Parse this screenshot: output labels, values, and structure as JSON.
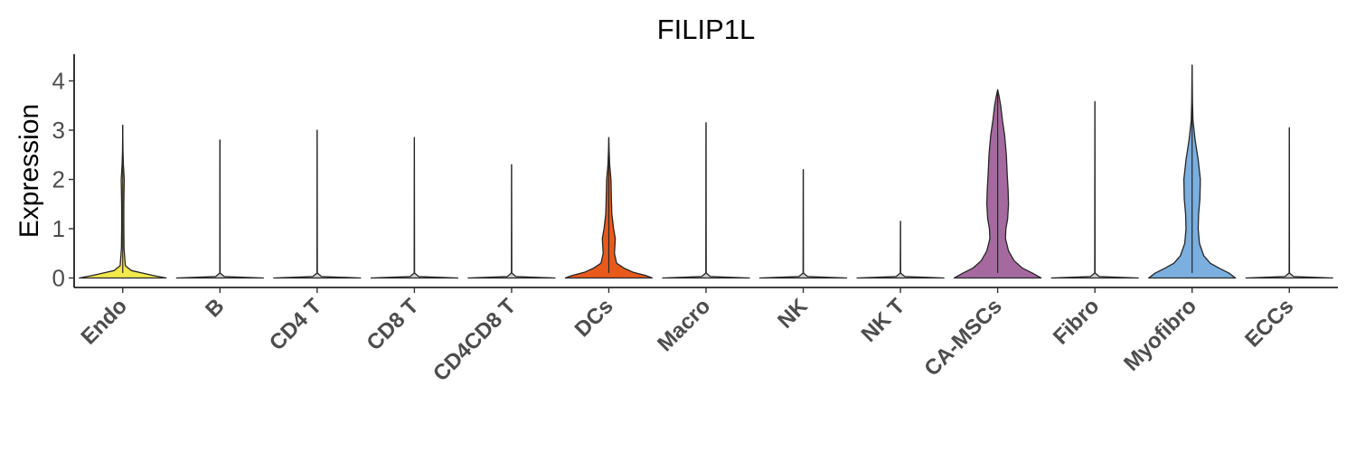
{
  "chart_data": {
    "type": "violin",
    "title": "FILIP1L",
    "xlabel": "",
    "ylabel": "Expression",
    "ylim": [
      -0.2,
      4.35
    ],
    "yticks": [
      0,
      1,
      2,
      3,
      4
    ],
    "grid": false,
    "legend": "none",
    "categories": [
      "Endo",
      "B",
      "CD4 T",
      "CD8 T",
      "CD4CD8 T",
      "DCs",
      "Macro",
      "NK",
      "NK T",
      "CA-MSCs",
      "Fibro",
      "Myofibro",
      "ECCs"
    ],
    "series": [
      {
        "category": "Endo",
        "color": "#f2e94e",
        "max": 3.1,
        "density": [
          [
            0,
            1.0
          ],
          [
            0.05,
            0.7
          ],
          [
            0.1,
            0.45
          ],
          [
            0.15,
            0.2
          ],
          [
            0.25,
            0.06
          ],
          [
            0.6,
            0.03
          ],
          [
            1.0,
            0.025
          ],
          [
            1.5,
            0.025
          ],
          [
            2.0,
            0.035
          ],
          [
            2.3,
            0.015
          ],
          [
            2.6,
            0.005
          ],
          [
            3.1,
            0.0
          ]
        ]
      },
      {
        "category": "B",
        "color": "#cccccc",
        "max": 2.8,
        "density": [
          [
            0,
            1.0
          ],
          [
            0.03,
            0.1
          ],
          [
            0.1,
            0.004
          ],
          [
            2.8,
            0.0
          ]
        ]
      },
      {
        "category": "CD4 T",
        "color": "#cccccc",
        "max": 3.0,
        "density": [
          [
            0,
            1.0
          ],
          [
            0.03,
            0.1
          ],
          [
            0.1,
            0.004
          ],
          [
            3.0,
            0.0
          ]
        ]
      },
      {
        "category": "CD8 T",
        "color": "#cccccc",
        "max": 2.85,
        "density": [
          [
            0,
            1.0
          ],
          [
            0.03,
            0.1
          ],
          [
            0.1,
            0.004
          ],
          [
            2.85,
            0.0
          ]
        ]
      },
      {
        "category": "CD4CD8 T",
        "color": "#cccccc",
        "max": 2.3,
        "density": [
          [
            0,
            1.0
          ],
          [
            0.03,
            0.1
          ],
          [
            0.1,
            0.004
          ],
          [
            2.3,
            0.0
          ]
        ]
      },
      {
        "category": "DCs",
        "color": "#e85a1c",
        "max": 2.85,
        "density": [
          [
            0,
            1.0
          ],
          [
            0.05,
            0.85
          ],
          [
            0.12,
            0.55
          ],
          [
            0.2,
            0.35
          ],
          [
            0.3,
            0.18
          ],
          [
            0.5,
            0.13
          ],
          [
            0.8,
            0.15
          ],
          [
            1.0,
            0.11
          ],
          [
            1.3,
            0.07
          ],
          [
            1.6,
            0.06
          ],
          [
            2.0,
            0.05
          ],
          [
            2.3,
            0.02
          ],
          [
            2.6,
            0.007
          ],
          [
            2.85,
            0.0
          ]
        ]
      },
      {
        "category": "Macro",
        "color": "#cccccc",
        "max": 3.15,
        "density": [
          [
            0,
            1.0
          ],
          [
            0.03,
            0.1
          ],
          [
            0.1,
            0.004
          ],
          [
            3.15,
            0.0
          ]
        ]
      },
      {
        "category": "NK",
        "color": "#cccccc",
        "max": 2.2,
        "density": [
          [
            0,
            1.0
          ],
          [
            0.03,
            0.1
          ],
          [
            0.1,
            0.004
          ],
          [
            2.2,
            0.0
          ]
        ]
      },
      {
        "category": "NK T",
        "color": "#cccccc",
        "max": 1.15,
        "density": [
          [
            0,
            1.0
          ],
          [
            0.03,
            0.1
          ],
          [
            0.1,
            0.004
          ],
          [
            1.15,
            0.0
          ]
        ]
      },
      {
        "category": "CA-MSCs",
        "color": "#a569a0",
        "max": 3.82,
        "density": [
          [
            0,
            1.0
          ],
          [
            0.1,
            0.8
          ],
          [
            0.2,
            0.57
          ],
          [
            0.35,
            0.38
          ],
          [
            0.55,
            0.25
          ],
          [
            0.8,
            0.18
          ],
          [
            1.0,
            0.19
          ],
          [
            1.2,
            0.23
          ],
          [
            1.5,
            0.25
          ],
          [
            1.8,
            0.24
          ],
          [
            2.1,
            0.22
          ],
          [
            2.5,
            0.2
          ],
          [
            2.9,
            0.16
          ],
          [
            3.2,
            0.11
          ],
          [
            3.5,
            0.07
          ],
          [
            3.7,
            0.03
          ],
          [
            3.82,
            0.0
          ]
        ]
      },
      {
        "category": "Fibro",
        "color": "#cccccc",
        "max": 3.58,
        "density": [
          [
            0,
            1.0
          ],
          [
            0.03,
            0.1
          ],
          [
            0.1,
            0.004
          ],
          [
            3.58,
            0.0
          ]
        ]
      },
      {
        "category": "Myofibro",
        "color": "#7aafe0",
        "max": 4.32,
        "density": [
          [
            0,
            1.0
          ],
          [
            0.1,
            0.85
          ],
          [
            0.2,
            0.62
          ],
          [
            0.3,
            0.42
          ],
          [
            0.45,
            0.27
          ],
          [
            0.7,
            0.17
          ],
          [
            1.0,
            0.14
          ],
          [
            1.3,
            0.15
          ],
          [
            1.6,
            0.18
          ],
          [
            2.0,
            0.19
          ],
          [
            2.4,
            0.14
          ],
          [
            2.8,
            0.07
          ],
          [
            3.2,
            0.02
          ],
          [
            3.6,
            0.008
          ],
          [
            4.0,
            0.004
          ],
          [
            4.32,
            0.0
          ]
        ]
      },
      {
        "category": "ECCs",
        "color": "#cccccc",
        "max": 3.05,
        "density": [
          [
            0,
            1.0
          ],
          [
            0.03,
            0.1
          ],
          [
            0.1,
            0.004
          ],
          [
            3.05,
            0.0
          ]
        ]
      }
    ]
  }
}
